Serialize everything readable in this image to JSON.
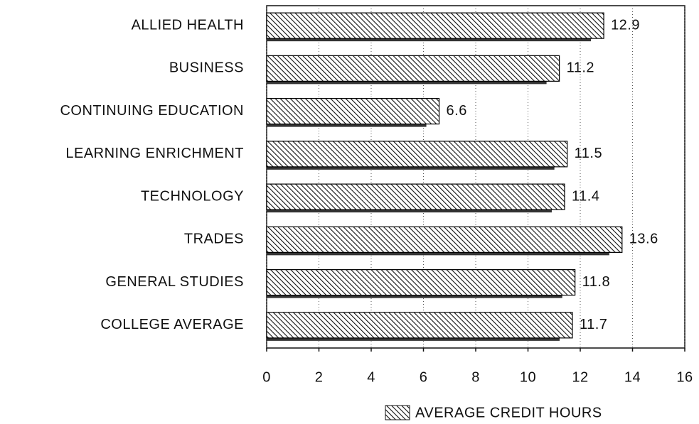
{
  "chart_data": {
    "type": "hbar",
    "categories": [
      "ALLIED HEALTH",
      "BUSINESS",
      "CONTINUING EDUCATION",
      "LEARNING ENRICHMENT",
      "TECHNOLOGY",
      "TRADES",
      "GENERAL STUDIES",
      "COLLEGE AVERAGE"
    ],
    "series": [
      {
        "name": "AVERAGE CREDIT HOURS",
        "color": "#000000",
        "values": [
          12.9,
          11.2,
          6.6,
          11.5,
          11.4,
          13.6,
          11.8,
          11.7
        ]
      }
    ],
    "xlim": [
      0,
      16
    ],
    "xticks": [
      0,
      2,
      4,
      6,
      8,
      10,
      12,
      14,
      16
    ],
    "grid": true,
    "legend": "bottom-right"
  }
}
